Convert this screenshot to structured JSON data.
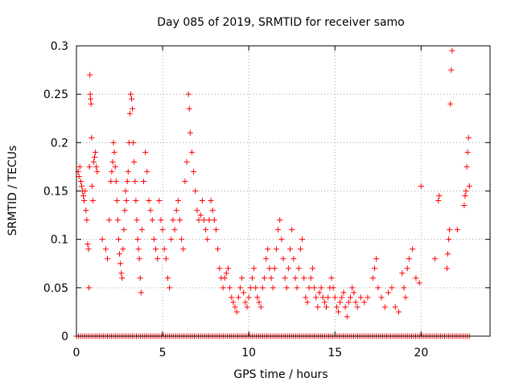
{
  "chart_data": {
    "type": "scatter",
    "title": "Day 085 of 2019, SRMTID for receiver samo",
    "xlabel": "GPS time / hours",
    "ylabel": "SRMTID / TECUs",
    "xlim": [
      0,
      24
    ],
    "ylim": [
      0,
      0.3
    ],
    "xticks": [
      0,
      5,
      10,
      15,
      20
    ],
    "yticks": [
      0,
      0.05,
      0.1,
      0.15,
      0.2,
      0.25,
      0.3
    ],
    "xtick_labels": [
      "0",
      "5",
      "10",
      "15",
      "20"
    ],
    "ytick_labels": [
      "0",
      "0.05",
      "0.1",
      "0.15",
      "0.2",
      "0.25",
      "0.3"
    ],
    "grid": true,
    "marker": "+",
    "colors": {
      "series": "#ff0000",
      "grid": "#a0a0a0",
      "axis": "#000000"
    },
    "series": [
      {
        "name": "SRMTID",
        "points": [
          [
            0.1,
            0.17
          ],
          [
            0.15,
            0.165
          ],
          [
            0.2,
            0.175
          ],
          [
            0.25,
            0.16
          ],
          [
            0.3,
            0.155
          ],
          [
            0.35,
            0.15
          ],
          [
            0.4,
            0.145
          ],
          [
            0.45,
            0.14
          ],
          [
            0.5,
            0.15
          ],
          [
            0.55,
            0.13
          ],
          [
            0.6,
            0.12
          ],
          [
            0.65,
            0.095
          ],
          [
            0.7,
            0.09
          ],
          [
            0.72,
            0.05
          ],
          [
            0.75,
            0.175
          ],
          [
            0.78,
            0.27
          ],
          [
            0.8,
            0.25
          ],
          [
            0.82,
            0.245
          ],
          [
            0.85,
            0.24
          ],
          [
            0.88,
            0.205
          ],
          [
            0.9,
            0.155
          ],
          [
            0.95,
            0.14
          ],
          [
            1.0,
            0.18
          ],
          [
            1.05,
            0.185
          ],
          [
            1.1,
            0.19
          ],
          [
            1.15,
            0.175
          ],
          [
            1.2,
            0.17
          ],
          [
            1.5,
            0.1
          ],
          [
            1.7,
            0.09
          ],
          [
            1.8,
            0.08
          ],
          [
            1.9,
            0.12
          ],
          [
            2.0,
            0.16
          ],
          [
            2.05,
            0.17
          ],
          [
            2.1,
            0.18
          ],
          [
            2.15,
            0.2
          ],
          [
            2.2,
            0.19
          ],
          [
            2.25,
            0.175
          ],
          [
            2.3,
            0.16
          ],
          [
            2.35,
            0.14
          ],
          [
            2.4,
            0.12
          ],
          [
            2.45,
            0.1
          ],
          [
            2.5,
            0.085
          ],
          [
            2.55,
            0.075
          ],
          [
            2.6,
            0.065
          ],
          [
            2.65,
            0.06
          ],
          [
            2.7,
            0.09
          ],
          [
            2.75,
            0.11
          ],
          [
            2.8,
            0.13
          ],
          [
            2.85,
            0.15
          ],
          [
            2.9,
            0.14
          ],
          [
            2.95,
            0.16
          ],
          [
            3.0,
            0.17
          ],
          [
            3.05,
            0.2
          ],
          [
            3.1,
            0.23
          ],
          [
            3.15,
            0.25
          ],
          [
            3.2,
            0.245
          ],
          [
            3.25,
            0.235
          ],
          [
            3.3,
            0.2
          ],
          [
            3.35,
            0.18
          ],
          [
            3.4,
            0.16
          ],
          [
            3.45,
            0.14
          ],
          [
            3.5,
            0.12
          ],
          [
            3.55,
            0.1
          ],
          [
            3.6,
            0.09
          ],
          [
            3.65,
            0.08
          ],
          [
            3.7,
            0.06
          ],
          [
            3.75,
            0.045
          ],
          [
            3.8,
            0.11
          ],
          [
            3.9,
            0.16
          ],
          [
            4.0,
            0.19
          ],
          [
            4.1,
            0.17
          ],
          [
            4.2,
            0.14
          ],
          [
            4.3,
            0.13
          ],
          [
            4.4,
            0.12
          ],
          [
            4.5,
            0.1
          ],
          [
            4.6,
            0.09
          ],
          [
            4.7,
            0.08
          ],
          [
            4.8,
            0.14
          ],
          [
            4.9,
            0.12
          ],
          [
            5.0,
            0.11
          ],
          [
            5.1,
            0.09
          ],
          [
            5.2,
            0.08
          ],
          [
            5.3,
            0.06
          ],
          [
            5.4,
            0.05
          ],
          [
            5.5,
            0.1
          ],
          [
            5.6,
            0.12
          ],
          [
            5.7,
            0.11
          ],
          [
            5.8,
            0.13
          ],
          [
            5.9,
            0.14
          ],
          [
            6.0,
            0.12
          ],
          [
            6.1,
            0.1
          ],
          [
            6.2,
            0.09
          ],
          [
            6.3,
            0.16
          ],
          [
            6.4,
            0.18
          ],
          [
            6.5,
            0.25
          ],
          [
            6.55,
            0.235
          ],
          [
            6.6,
            0.21
          ],
          [
            6.7,
            0.19
          ],
          [
            6.8,
            0.17
          ],
          [
            6.9,
            0.15
          ],
          [
            7.0,
            0.13
          ],
          [
            7.1,
            0.12
          ],
          [
            7.2,
            0.125
          ],
          [
            7.3,
            0.14
          ],
          [
            7.4,
            0.12
          ],
          [
            7.5,
            0.11
          ],
          [
            7.6,
            0.1
          ],
          [
            7.7,
            0.12
          ],
          [
            7.8,
            0.14
          ],
          [
            7.9,
            0.13
          ],
          [
            8.0,
            0.12
          ],
          [
            8.1,
            0.11
          ],
          [
            8.2,
            0.09
          ],
          [
            8.3,
            0.07
          ],
          [
            8.4,
            0.06
          ],
          [
            8.5,
            0.05
          ],
          [
            8.6,
            0.06
          ],
          [
            8.7,
            0.065
          ],
          [
            8.8,
            0.07
          ],
          [
            8.9,
            0.05
          ],
          [
            9.0,
            0.04
          ],
          [
            9.1,
            0.035
          ],
          [
            9.2,
            0.03
          ],
          [
            9.3,
            0.025
          ],
          [
            9.4,
            0.04
          ],
          [
            9.5,
            0.05
          ],
          [
            9.6,
            0.06
          ],
          [
            9.7,
            0.045
          ],
          [
            9.8,
            0.035
          ],
          [
            9.9,
            0.03
          ],
          [
            10.0,
            0.04
          ],
          [
            10.1,
            0.05
          ],
          [
            10.2,
            0.06
          ],
          [
            10.3,
            0.07
          ],
          [
            10.4,
            0.05
          ],
          [
            10.5,
            0.04
          ],
          [
            10.6,
            0.035
          ],
          [
            10.7,
            0.03
          ],
          [
            10.8,
            0.05
          ],
          [
            10.9,
            0.06
          ],
          [
            11.0,
            0.08
          ],
          [
            11.1,
            0.09
          ],
          [
            11.2,
            0.07
          ],
          [
            11.3,
            0.06
          ],
          [
            11.4,
            0.05
          ],
          [
            11.5,
            0.07
          ],
          [
            11.6,
            0.09
          ],
          [
            11.7,
            0.11
          ],
          [
            11.8,
            0.12
          ],
          [
            11.9,
            0.1
          ],
          [
            12.0,
            0.08
          ],
          [
            12.1,
            0.06
          ],
          [
            12.2,
            0.05
          ],
          [
            12.3,
            0.07
          ],
          [
            12.4,
            0.09
          ],
          [
            12.5,
            0.11
          ],
          [
            12.6,
            0.08
          ],
          [
            12.7,
            0.06
          ],
          [
            12.8,
            0.05
          ],
          [
            12.9,
            0.07
          ],
          [
            13.0,
            0.09
          ],
          [
            13.1,
            0.1
          ],
          [
            13.2,
            0.06
          ],
          [
            13.3,
            0.04
          ],
          [
            13.4,
            0.035
          ],
          [
            13.5,
            0.05
          ],
          [
            13.6,
            0.06
          ],
          [
            13.7,
            0.07
          ],
          [
            13.8,
            0.05
          ],
          [
            13.9,
            0.04
          ],
          [
            14.0,
            0.03
          ],
          [
            14.1,
            0.045
          ],
          [
            14.2,
            0.05
          ],
          [
            14.3,
            0.04
          ],
          [
            14.4,
            0.035
          ],
          [
            14.5,
            0.03
          ],
          [
            14.6,
            0.04
          ],
          [
            14.7,
            0.05
          ],
          [
            14.8,
            0.06
          ],
          [
            14.9,
            0.05
          ],
          [
            15.0,
            0.04
          ],
          [
            15.1,
            0.03
          ],
          [
            15.2,
            0.025
          ],
          [
            15.3,
            0.035
          ],
          [
            15.4,
            0.04
          ],
          [
            15.5,
            0.045
          ],
          [
            15.6,
            0.03
          ],
          [
            15.7,
            0.02
          ],
          [
            15.8,
            0.035
          ],
          [
            15.9,
            0.04
          ],
          [
            16.0,
            0.05
          ],
          [
            16.1,
            0.045
          ],
          [
            16.2,
            0.035
          ],
          [
            16.3,
            0.03
          ],
          [
            16.5,
            0.04
          ],
          [
            16.7,
            0.035
          ],
          [
            16.9,
            0.04
          ],
          [
            17.2,
            0.06
          ],
          [
            17.3,
            0.07
          ],
          [
            17.4,
            0.08
          ],
          [
            17.5,
            0.05
          ],
          [
            17.7,
            0.04
          ],
          [
            17.9,
            0.03
          ],
          [
            18.1,
            0.045
          ],
          [
            18.3,
            0.05
          ],
          [
            18.5,
            0.03
          ],
          [
            18.7,
            0.025
          ],
          [
            18.9,
            0.065
          ],
          [
            19.0,
            0.05
          ],
          [
            19.1,
            0.04
          ],
          [
            19.2,
            0.07
          ],
          [
            19.3,
            0.08
          ],
          [
            19.5,
            0.09
          ],
          [
            19.7,
            0.06
          ],
          [
            19.9,
            0.055
          ],
          [
            20.0,
            0.155
          ],
          [
            20.8,
            0.08
          ],
          [
            21.0,
            0.14
          ],
          [
            21.05,
            0.145
          ],
          [
            21.5,
            0.07
          ],
          [
            21.55,
            0.085
          ],
          [
            21.6,
            0.1
          ],
          [
            21.65,
            0.11
          ],
          [
            21.7,
            0.24
          ],
          [
            21.75,
            0.275
          ],
          [
            21.8,
            0.295
          ],
          [
            22.1,
            0.11
          ],
          [
            22.5,
            0.135
          ],
          [
            22.55,
            0.145
          ],
          [
            22.6,
            0.15
          ],
          [
            22.65,
            0.175
          ],
          [
            22.7,
            0.19
          ],
          [
            22.75,
            0.205
          ],
          [
            22.8,
            0.155
          ]
        ]
      }
    ],
    "zero_band": {
      "x_start": 0,
      "x_end": 22.8,
      "y": 0,
      "step": 0.12
    }
  }
}
